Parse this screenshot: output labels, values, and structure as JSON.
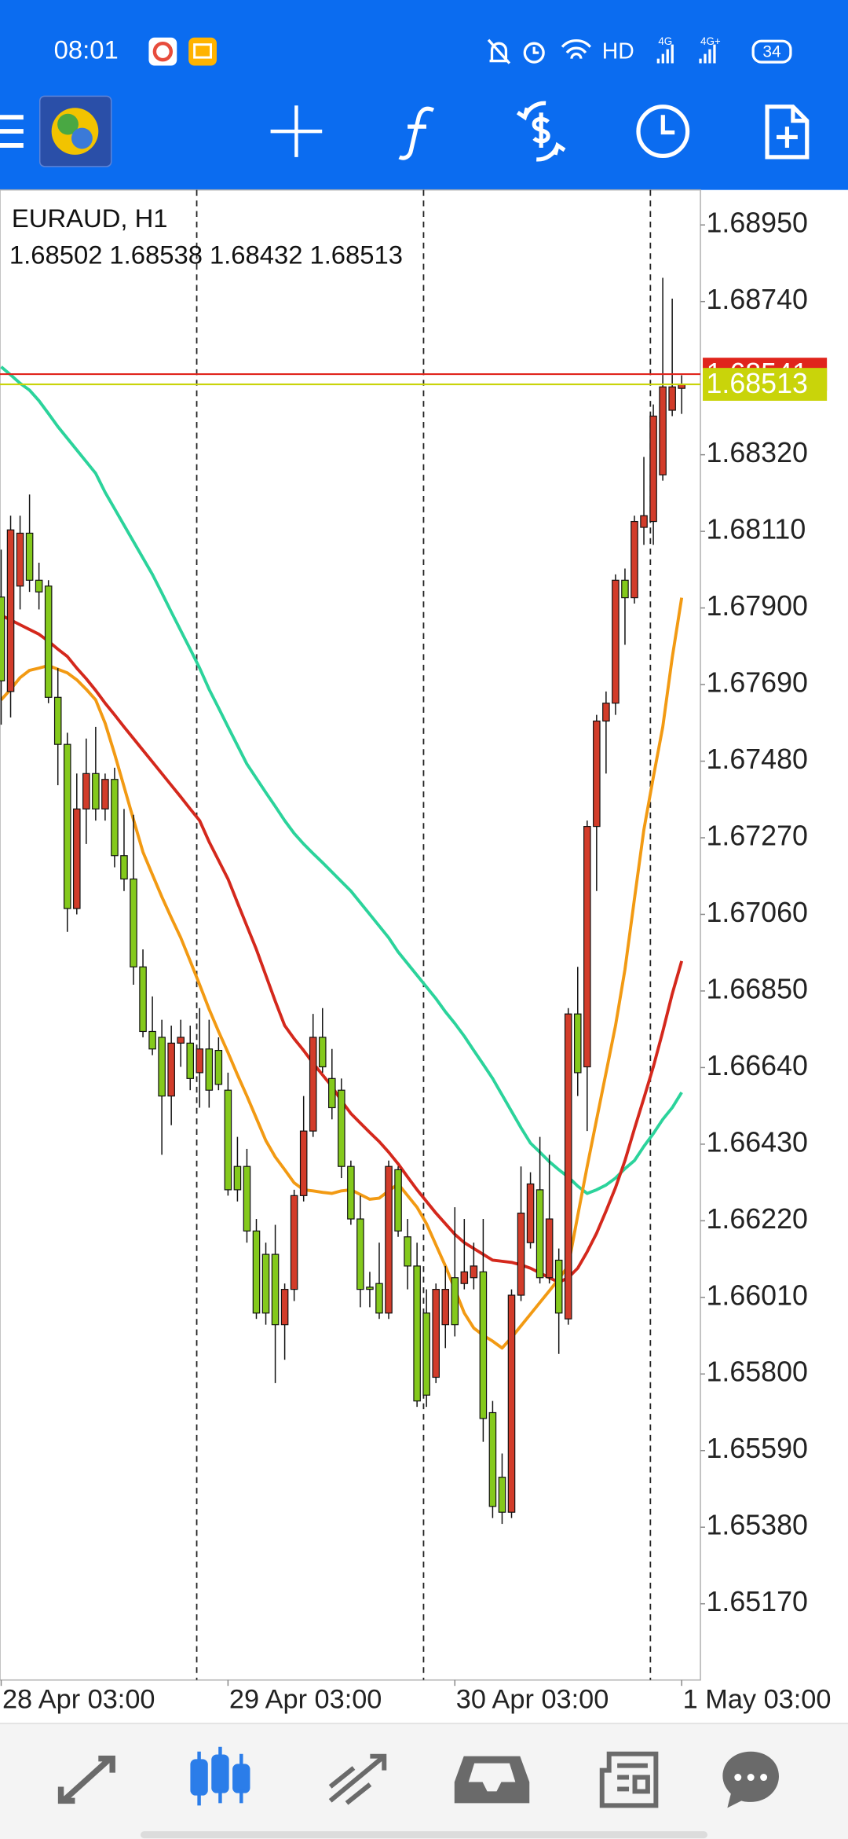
{
  "status_bar": {
    "time": "08:01",
    "network_labels": [
      "HD",
      "4G",
      "4G+"
    ],
    "battery": "34"
  },
  "chart_data": {
    "type": "candlestick",
    "symbol": "EURAUD, H1",
    "categories": [
      "28 Apr 03:00",
      null,
      null,
      null,
      null,
      null,
      null,
      null,
      null,
      null,
      null,
      null,
      null,
      null,
      null,
      null,
      null,
      null,
      null,
      null,
      null,
      null,
      null,
      null,
      "29 Apr 03:00",
      null,
      null,
      null,
      null,
      null,
      null,
      null,
      null,
      null,
      null,
      null,
      null,
      null,
      null,
      null,
      null,
      null,
      null,
      null,
      null,
      null,
      null,
      null,
      "30 Apr 03:00",
      null,
      null,
      null,
      null,
      null,
      null,
      null,
      null,
      null,
      null,
      null,
      null,
      null,
      null,
      null,
      null,
      null,
      null,
      null,
      null,
      null,
      null,
      null,
      "1 May 03:00"
    ],
    "ohlc": [
      [
        1.6793,
        1.6806,
        1.6758,
        1.677
      ],
      [
        1.67671,
        1.68153,
        1.676,
        1.68114
      ],
      [
        1.6796,
        1.68153,
        1.67896,
        1.68105
      ],
      [
        1.68105,
        1.68211,
        1.67944,
        1.67976
      ],
      [
        1.67976,
        1.68024,
        1.67896,
        1.67944
      ],
      [
        1.6796,
        1.67976,
        1.67639,
        1.67655
      ],
      [
        1.67655,
        1.67735,
        1.67414,
        1.67526
      ],
      [
        1.67526,
        1.67558,
        1.67012,
        1.67076
      ],
      [
        1.67076,
        1.67446,
        1.6706,
        1.67349
      ],
      [
        1.67349,
        1.67542,
        1.67253,
        1.67446
      ],
      [
        1.67446,
        1.67574,
        1.67317,
        1.67349
      ],
      [
        1.67349,
        1.67446,
        1.67317,
        1.6743
      ],
      [
        1.6743,
        1.67462,
        1.67189,
        1.67221
      ],
      [
        1.67221,
        1.67349,
        1.67124,
        1.67157
      ],
      [
        1.67157,
        1.67333,
        1.66867,
        1.66916
      ],
      [
        1.66916,
        1.66964,
        1.66723,
        1.66739
      ],
      [
        1.66739,
        1.66835,
        1.66674,
        1.66691
      ],
      [
        1.66723,
        1.66771,
        1.66401,
        1.66562
      ],
      [
        1.66562,
        1.66755,
        1.66482,
        1.66707
      ],
      [
        1.66707,
        1.66771,
        1.66642,
        1.66723
      ],
      [
        1.66707,
        1.66755,
        1.66578,
        1.6661
      ],
      [
        1.66626,
        1.66803,
        1.6653,
        1.66691
      ],
      [
        1.66691,
        1.66771,
        1.6653,
        1.66578
      ],
      [
        1.66687,
        1.66723,
        1.66578,
        1.66594
      ],
      [
        1.66578,
        1.66626,
        1.66289,
        1.66305
      ],
      [
        1.66369,
        1.6645,
        1.66273,
        1.66305
      ],
      [
        1.66369,
        1.66417,
        1.6616,
        1.66192
      ],
      [
        1.66192,
        1.66225,
        1.65951,
        1.65967
      ],
      [
        1.66128,
        1.6616,
        1.65935,
        1.65967
      ],
      [
        1.66128,
        1.66209,
        1.65775,
        1.65935
      ],
      [
        1.65935,
        1.66048,
        1.65839,
        1.66032
      ],
      [
        1.66032,
        1.66305,
        1.66,
        1.66289
      ],
      [
        1.66289,
        1.66562,
        1.66273,
        1.66466
      ],
      [
        1.66466,
        1.66787,
        1.6645,
        1.66723
      ],
      [
        1.66723,
        1.66803,
        1.66626,
        1.66642
      ],
      [
        1.6661,
        1.66691,
        1.66498,
        1.6653
      ],
      [
        1.66578,
        1.6661,
        1.66337,
        1.66369
      ],
      [
        1.66369,
        1.66385,
        1.66209,
        1.66225
      ],
      [
        1.66225,
        1.66289,
        1.65983,
        1.66032
      ],
      [
        1.66038,
        1.6608,
        1.65983,
        1.66032
      ],
      [
        1.66048,
        1.6616,
        1.65951,
        1.65967
      ],
      [
        1.65967,
        1.66385,
        1.65951,
        1.66369
      ],
      [
        1.6636,
        1.66369,
        1.66176,
        1.66192
      ],
      [
        1.66176,
        1.66225,
        1.66032,
        1.66096
      ],
      [
        1.66096,
        1.6616,
        1.6571,
        1.65726
      ],
      [
        1.65967,
        1.66032,
        1.6571,
        1.65742
      ],
      [
        1.65791,
        1.66048,
        1.65775,
        1.66032
      ],
      [
        1.65935,
        1.66096,
        1.65871,
        1.66032
      ],
      [
        1.66064,
        1.66257,
        1.65903,
        1.65935
      ],
      [
        1.66048,
        1.66225,
        1.66032,
        1.6608
      ],
      [
        1.66064,
        1.6616,
        1.66032,
        1.66096
      ],
      [
        1.6608,
        1.66225,
        1.65614,
        1.65678
      ],
      [
        1.65694,
        1.65726,
        1.65405,
        1.65437
      ],
      [
        1.65517,
        1.65582,
        1.65389,
        1.65421
      ],
      [
        1.65421,
        1.66032,
        1.65405,
        1.66016
      ],
      [
        1.66016,
        1.66369,
        1.66,
        1.66241
      ],
      [
        1.6616,
        1.66353,
        1.66144,
        1.66321
      ],
      [
        1.66305,
        1.6645,
        1.66048,
        1.66064
      ],
      [
        1.66064,
        1.66401,
        1.66048,
        1.66225
      ],
      [
        1.66112,
        1.66144,
        1.65855,
        1.65967
      ],
      [
        1.65951,
        1.66803,
        1.65935,
        1.66787
      ],
      [
        1.66787,
        1.66916,
        1.66562,
        1.66626
      ],
      [
        1.66642,
        1.67317,
        1.66466,
        1.67301
      ],
      [
        1.67301,
        1.67607,
        1.67124,
        1.6759
      ],
      [
        1.6759,
        1.67671,
        1.67446,
        1.67639
      ],
      [
        1.67639,
        1.67992,
        1.67607,
        1.67976
      ],
      [
        1.67976,
        1.68008,
        1.67799,
        1.67928
      ],
      [
        1.67928,
        1.68153,
        1.67912,
        1.68137
      ],
      [
        1.68121,
        1.68314,
        1.68073,
        1.68153
      ],
      [
        1.68137,
        1.68458,
        1.68073,
        1.68426
      ],
      [
        1.68265,
        1.68805,
        1.68249,
        1.68506
      ],
      [
        1.68442,
        1.68748,
        1.68426,
        1.68506
      ],
      [
        1.68502,
        1.68538,
        1.68432,
        1.68513
      ]
    ],
    "bull_color": "#d23c2a",
    "bear_color": "#84c91c",
    "series": [
      {
        "color": "#2bd39b",
        "values": [
          1.68561,
          1.68539,
          1.68516,
          1.68497,
          1.68468,
          1.68433,
          1.68397,
          1.68365,
          1.68333,
          1.68301,
          1.68269,
          1.68217,
          1.68172,
          1.68127,
          1.68082,
          1.68037,
          1.67992,
          1.67941,
          1.67889,
          1.67838,
          1.67787,
          1.67735,
          1.67677,
          1.67626,
          1.67574,
          1.67523,
          1.67472,
          1.67433,
          1.67394,
          1.67356,
          1.67317,
          1.67282,
          1.67253,
          1.67227,
          1.67202,
          1.67176,
          1.6715,
          1.67124,
          1.67092,
          1.6706,
          1.67028,
          1.66996,
          1.66957,
          1.66925,
          1.66893,
          1.66861,
          1.66829,
          1.66793,
          1.66761,
          1.66726,
          1.66687,
          1.66649,
          1.6661,
          1.66565,
          1.6652,
          1.66475,
          1.66433,
          1.66408,
          1.66382,
          1.6636,
          1.6634,
          1.66315,
          1.66295,
          1.66305,
          1.66318,
          1.66337,
          1.66363,
          1.66385,
          1.66424,
          1.66459,
          1.66498,
          1.6653,
          1.66572
        ]
      },
      {
        "color": "#d4281c",
        "values": [
          1.6788,
          1.67867,
          1.67854,
          1.67841,
          1.67828,
          1.67809,
          1.67787,
          1.67767,
          1.67735,
          1.67706,
          1.67674,
          1.67639,
          1.67607,
          1.67574,
          1.67542,
          1.6751,
          1.67478,
          1.67446,
          1.67414,
          1.67382,
          1.67349,
          1.67317,
          1.67259,
          1.67208,
          1.67157,
          1.67092,
          1.67028,
          1.66964,
          1.66893,
          1.66822,
          1.66755,
          1.66719,
          1.66687,
          1.66652,
          1.6662,
          1.66588,
          1.66549,
          1.66514,
          1.66488,
          1.66462,
          1.66437,
          1.66408,
          1.66376,
          1.6634,
          1.66305,
          1.66273,
          1.66241,
          1.66212,
          1.66183,
          1.6616,
          1.66144,
          1.66128,
          1.66112,
          1.66109,
          1.66106,
          1.66099,
          1.6609,
          1.66077,
          1.66064,
          1.66051,
          1.66064,
          1.6609,
          1.66135,
          1.66186,
          1.66247,
          1.66311,
          1.66385,
          1.66472,
          1.66556,
          1.66642,
          1.66739,
          1.66842,
          1.66932
        ]
      },
      {
        "color": "#f29a13",
        "values": [
          1.67648,
          1.67677,
          1.67709,
          1.67729,
          1.67735,
          1.67742,
          1.67732,
          1.67722,
          1.67703,
          1.67677,
          1.67648,
          1.67584,
          1.675,
          1.6741,
          1.6732,
          1.67231,
          1.67169,
          1.67108,
          1.67051,
          1.66996,
          1.66932,
          1.66867,
          1.668,
          1.66739,
          1.66681,
          1.6662,
          1.66562,
          1.66501,
          1.6644,
          1.66395,
          1.6636,
          1.66324,
          1.66305,
          1.66302,
          1.66298,
          1.66295,
          1.66302,
          1.66305,
          1.66292,
          1.66279,
          1.66282,
          1.66302,
          1.66321,
          1.66289,
          1.66257,
          1.66212,
          1.66154,
          1.66096,
          1.66032,
          1.65967,
          1.65926,
          1.65906,
          1.6589,
          1.65871,
          1.659,
          1.65932,
          1.65964,
          1.65996,
          1.66028,
          1.66061,
          1.66096,
          1.66234,
          1.66369,
          1.66498,
          1.66626,
          1.66755,
          1.66909,
          1.67102,
          1.67292,
          1.67436,
          1.67574,
          1.67764,
          1.67928
        ]
      }
    ],
    "price_lines": [
      {
        "value": 1.68541,
        "color": "#e0241c",
        "text_color": "#ffffff"
      },
      {
        "value": 1.68513,
        "color": "#c9d40a",
        "text_color": "#ffffff"
      }
    ],
    "ylim": [
      1.64961,
      1.69046
    ],
    "yticks": [
      {
        "value": 1.6895,
        "label": "1.68950"
      },
      {
        "value": 1.6874,
        "label": "1.68740"
      },
      {
        "value": 1.6832,
        "label": "1.68320"
      },
      {
        "value": 1.6811,
        "label": "1.68110"
      },
      {
        "value": 1.679,
        "label": "1.67900"
      },
      {
        "value": 1.6769,
        "label": "1.67690"
      },
      {
        "value": 1.6748,
        "label": "1.67480"
      },
      {
        "value": 1.6727,
        "label": "1.67270"
      },
      {
        "value": 1.6706,
        "label": "1.67060"
      },
      {
        "value": 1.6685,
        "label": "1.66850"
      },
      {
        "value": 1.6664,
        "label": "1.66640"
      },
      {
        "value": 1.6643,
        "label": "1.66430"
      },
      {
        "value": 1.6622,
        "label": "1.66220"
      },
      {
        "value": 1.6601,
        "label": "1.66010"
      },
      {
        "value": 1.658,
        "label": "1.65800"
      },
      {
        "value": 1.6559,
        "label": "1.65590"
      },
      {
        "value": 1.6538,
        "label": "1.65380"
      },
      {
        "value": 1.6517,
        "label": "1.65170"
      }
    ],
    "period_separators": true,
    "grid": false
  }
}
